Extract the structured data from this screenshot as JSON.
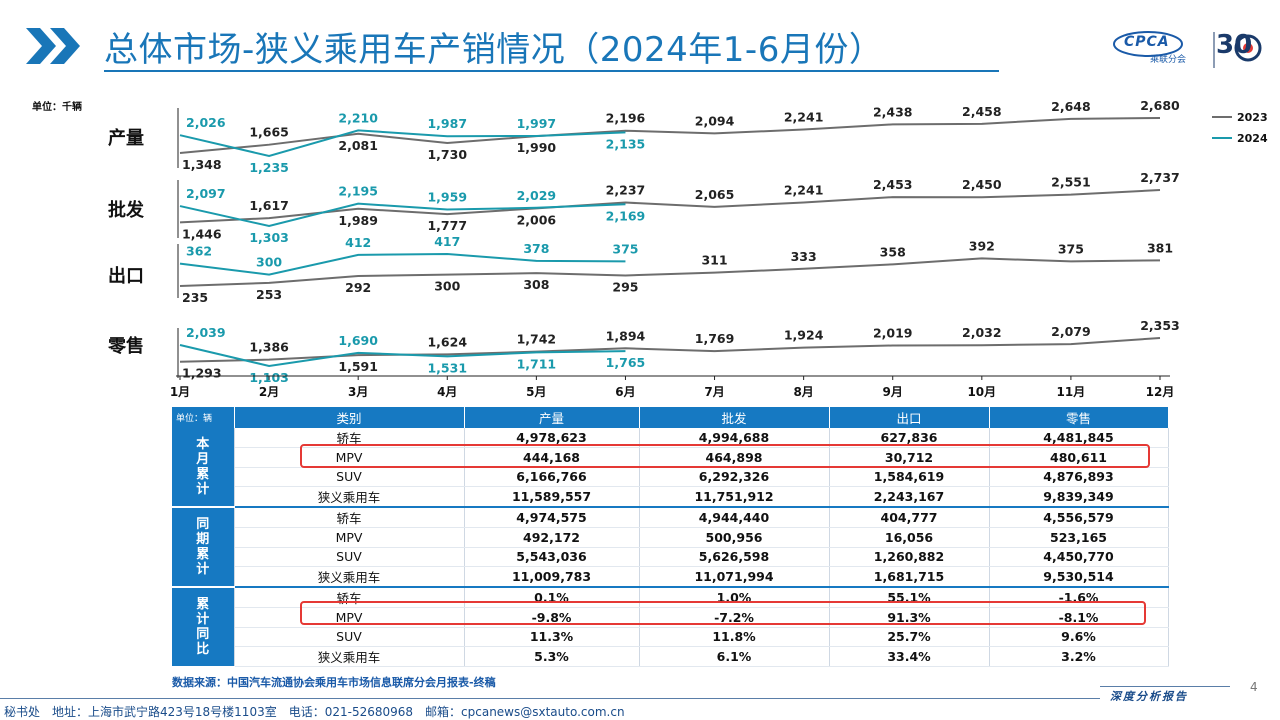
{
  "header": {
    "title": "总体市场-狭义乘用车产销情况（2024年1-6月份）",
    "logo_text": "CPCA",
    "logo_sub": "乘联分会",
    "logo_anniv": "30"
  },
  "chart_data": {
    "type": "line",
    "unit": "单位：千辆",
    "categories": [
      "1月",
      "2月",
      "3月",
      "4月",
      "5月",
      "6月",
      "7月",
      "8月",
      "9月",
      "10月",
      "11月",
      "12月"
    ],
    "legend": [
      "2023",
      "2024"
    ],
    "legend_position": "top-right",
    "colors": {
      "2023": "#6d6d6d",
      "2024": "#1a9aac"
    },
    "panels": [
      {
        "name": "产量",
        "series": [
          {
            "name": "2023",
            "values": [
              1348,
              1665,
              2081,
              1730,
              1990,
              2196,
              2094,
              2241,
              2438,
              2458,
              2648,
              2680
            ]
          },
          {
            "name": "2024",
            "values": [
              2026,
              1235,
              2210,
              1987,
              1997,
              2135
            ]
          }
        ]
      },
      {
        "name": "批发",
        "series": [
          {
            "name": "2023",
            "values": [
              1446,
              1617,
              1989,
              1777,
              2006,
              2237,
              2065,
              2241,
              2453,
              2450,
              2551,
              2737
            ]
          },
          {
            "name": "2024",
            "values": [
              2097,
              1303,
              2195,
              1959,
              2029,
              2169
            ]
          }
        ]
      },
      {
        "name": "出口",
        "series": [
          {
            "name": "2023",
            "values": [
              235,
              253,
              292,
              300,
              308,
              295,
              311,
              333,
              358,
              392,
              375,
              381
            ]
          },
          {
            "name": "2024",
            "values": [
              362,
              300,
              412,
              417,
              378,
              375
            ]
          }
        ]
      },
      {
        "name": "零售",
        "series": [
          {
            "name": "2023",
            "values": [
              1293,
              1386,
              1591,
              1624,
              1742,
              1894,
              1769,
              1924,
              2019,
              2032,
              2079,
              2353
            ]
          },
          {
            "name": "2024",
            "values": [
              2039,
              1103,
              1690,
              1531,
              1711,
              1765
            ]
          }
        ]
      }
    ]
  },
  "table": {
    "unit": "单位：辆",
    "headers": [
      "类别",
      "产量",
      "批发",
      "出口",
      "零售"
    ],
    "groups": [
      {
        "label": "本\n月\n累\n计",
        "rows": [
          [
            "轿车",
            "4,978,623",
            "4,994,688",
            "627,836",
            "4,481,845"
          ],
          [
            "MPV",
            "444,168",
            "464,898",
            "30,712",
            "480,611"
          ],
          [
            "SUV",
            "6,166,766",
            "6,292,326",
            "1,584,619",
            "4,876,893"
          ],
          [
            "狭义乘用车",
            "11,589,557",
            "11,751,912",
            "2,243,167",
            "9,839,349"
          ]
        ]
      },
      {
        "label": "同\n期\n累\n计",
        "rows": [
          [
            "轿车",
            "4,974,575",
            "4,944,440",
            "404,777",
            "4,556,579"
          ],
          [
            "MPV",
            "492,172",
            "500,956",
            "16,056",
            "523,165"
          ],
          [
            "SUV",
            "5,543,036",
            "5,626,598",
            "1,260,882",
            "4,450,770"
          ],
          [
            "狭义乘用车",
            "11,009,783",
            "11,071,994",
            "1,681,715",
            "9,530,514"
          ]
        ]
      },
      {
        "label": "累\n计\n同\n比",
        "rows": [
          [
            "轿车",
            "0.1%",
            "1.0%",
            "55.1%",
            "-1.6%"
          ],
          [
            "MPV",
            "-9.8%",
            "-7.2%",
            "91.3%",
            "-8.1%"
          ],
          [
            "SUV",
            "11.3%",
            "11.8%",
            "25.7%",
            "9.6%"
          ],
          [
            "狭义乘用车",
            "5.3%",
            "6.1%",
            "33.4%",
            "3.2%"
          ]
        ]
      }
    ]
  },
  "source": "数据来源：中国汽车流通协会乘用车市场信息联席分会月报表-终稿",
  "page_number": "4",
  "footer": {
    "text": "秘书处　地址：上海市武宁路423号18号楼1103室　电话：021-52680968　邮箱：cpcanews@sxtauto.com.cn",
    "right": "深度分析报告"
  }
}
